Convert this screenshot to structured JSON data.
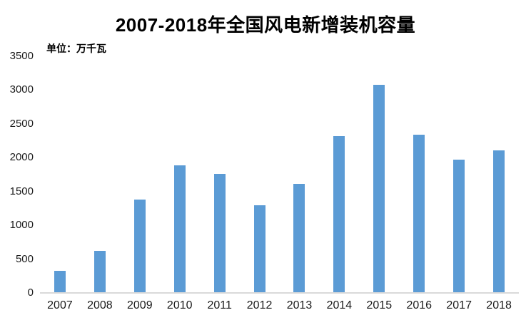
{
  "chart": {
    "title": "2007-2018年全国风电新增装机容量",
    "unit_label": "单位：万千瓦"
  },
  "chart_data": {
    "type": "bar",
    "title": "2007-2018年全国风电新增装机容量",
    "unit": "万千瓦",
    "categories": [
      "2007",
      "2008",
      "2009",
      "2010",
      "2011",
      "2012",
      "2013",
      "2014",
      "2015",
      "2016",
      "2017",
      "2018"
    ],
    "values": [
      330,
      620,
      1380,
      1890,
      1760,
      1300,
      1610,
      2320,
      3075,
      2340,
      1970,
      2110
    ],
    "xlabel": "",
    "ylabel": "万千瓦",
    "ylim": [
      0,
      3500
    ],
    "yticks": [
      0,
      500,
      1000,
      1500,
      2000,
      2500,
      3000,
      3500
    ],
    "grid": false,
    "legend_position": "none",
    "bar_color": "#5B9BD5",
    "axis_line_color": "#D9D9D9",
    "text_color": "#1A1A1A",
    "background_color": "#FFFFFF"
  }
}
